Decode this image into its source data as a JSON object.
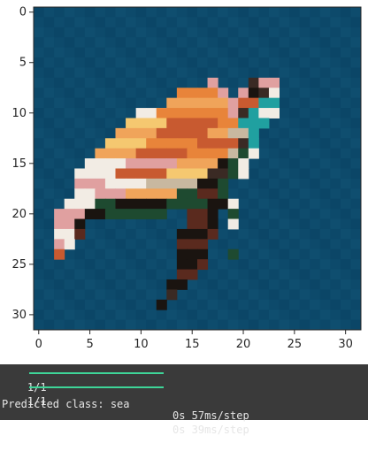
{
  "image_plot": {
    "x_ticks": [
      "0",
      "5",
      "10",
      "15",
      "20",
      "25",
      "30"
    ],
    "y_ticks": [
      "0",
      "5",
      "10",
      "15",
      "20",
      "25",
      "30"
    ],
    "image_size": 32,
    "background_color": "#0d4a6b",
    "subject": "pixelated sea turtle"
  },
  "console": {
    "lines": [
      {
        "counter": "1/1",
        "progress": 1.0,
        "time": "0s 57ms/step"
      },
      {
        "counter": "1/1",
        "progress": 1.0,
        "time": "0s 39ms/step"
      }
    ],
    "prediction": "Predicted class: sea"
  }
}
